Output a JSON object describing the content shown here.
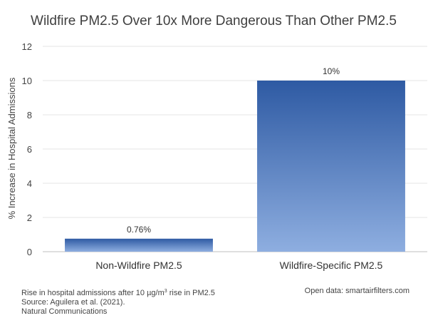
{
  "chart_data": {
    "type": "bar",
    "title": "Wildfire PM2.5 Over 10x More Dangerous Than Other PM2.5",
    "xlabel": "",
    "ylabel": "% Increase in Hospital Admissions",
    "categories": [
      "Non-Wildfire PM2.5",
      "Wildfire-Specific PM2.5"
    ],
    "values": [
      0.76,
      10
    ],
    "data_labels": [
      "0.76%",
      "10%"
    ],
    "ylim": [
      0,
      12
    ],
    "yticks": [
      0,
      2,
      4,
      6,
      8,
      10,
      12
    ],
    "grid": true,
    "legend": "none",
    "colors": {
      "bar_top": "#2e5aa3",
      "bar_bottom": "#8eaee0",
      "grid": "#e6e6e6",
      "axis": "#bfbfbf"
    }
  },
  "footnote": {
    "line1_prefix": "Rise in hospital admissions after 10 µg/m",
    "line1_sup": "3",
    "line1_suffix": " rise in PM2.5",
    "line2": "Source: Aguilera et al. (2021).",
    "line3": "Natural Communications",
    "source_right": "Open data: smartairfilters.com"
  }
}
